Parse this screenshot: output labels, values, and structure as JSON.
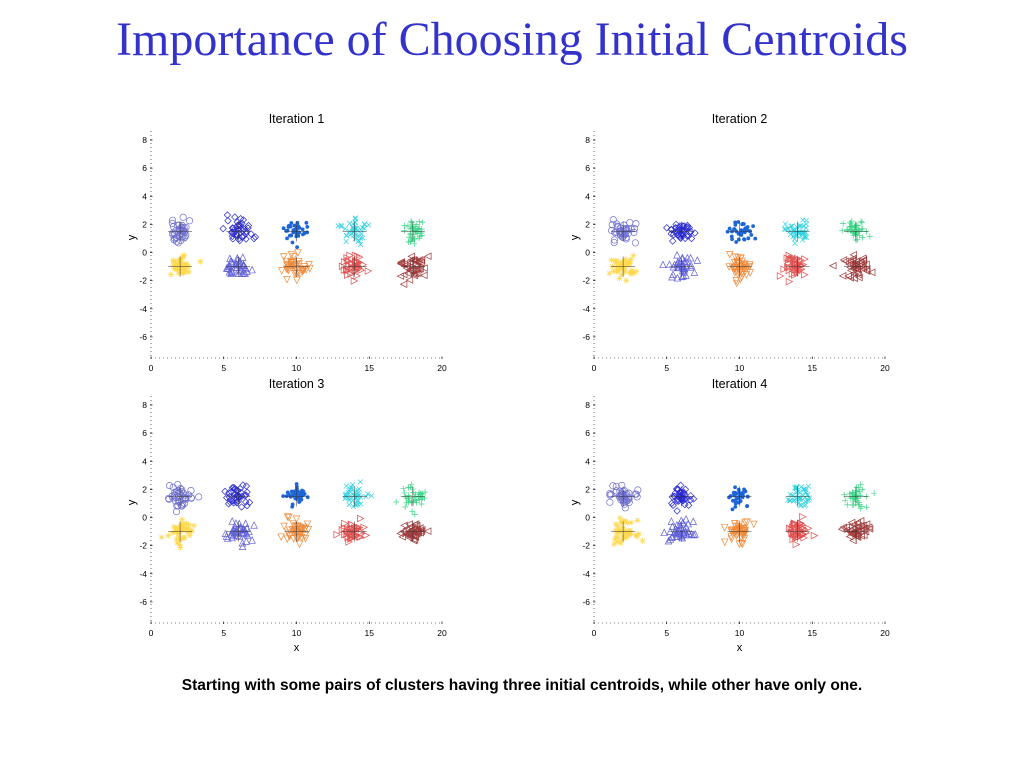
{
  "slide": {
    "title": "Importance of Choosing Initial Centroids",
    "caption": "Starting with some pairs of clusters having three initial centroids, while other have only one."
  },
  "chart_data": [
    {
      "type": "scatter",
      "title": "Iteration 1",
      "xlabel": "",
      "ylabel": "y",
      "xlim": [
        0,
        20
      ],
      "ylim": [
        -7.5,
        8.5
      ],
      "xticks": [
        0,
        5,
        10,
        15,
        20
      ],
      "yticks": [
        8,
        6,
        4,
        2,
        0,
        -2,
        -4,
        -6
      ],
      "clusters": [
        {
          "center": [
            2,
            1.5
          ],
          "color": "#6f6fd0",
          "marker": "circle"
        },
        {
          "center": [
            6,
            1.5
          ],
          "color": "#2a2ad0",
          "marker": "diamond"
        },
        {
          "center": [
            10,
            1.5
          ],
          "color": "#1e66d8",
          "marker": "dot"
        },
        {
          "center": [
            14,
            1.5
          ],
          "color": "#2ed1e0",
          "marker": "x"
        },
        {
          "center": [
            18,
            1.5
          ],
          "color": "#3fd68a",
          "marker": "plus"
        },
        {
          "center": [
            2,
            -1
          ],
          "color": "#ffd84a",
          "marker": "star"
        },
        {
          "center": [
            6,
            -1
          ],
          "color": "#6060d8",
          "marker": "triangle-up"
        },
        {
          "center": [
            10,
            -1
          ],
          "color": "#ee8a3a",
          "marker": "triangle-down"
        },
        {
          "center": [
            14,
            -1
          ],
          "color": "#e05050",
          "marker": "triangle-right"
        },
        {
          "center": [
            18,
            -1
          ],
          "color": "#a03a3a",
          "marker": "triangle-left"
        }
      ]
    },
    {
      "type": "scatter",
      "title": "Iteration 2",
      "xlabel": "",
      "ylabel": "y",
      "xlim": [
        0,
        20
      ],
      "ylim": [
        -7.5,
        8.5
      ],
      "xticks": [
        0,
        5,
        10,
        15,
        20
      ],
      "yticks": [
        8,
        6,
        4,
        2,
        0,
        -2,
        -4,
        -6
      ],
      "clusters": [
        {
          "center": [
            2,
            1.5
          ],
          "color": "#6f6fd0",
          "marker": "circle"
        },
        {
          "center": [
            6,
            1.5
          ],
          "color": "#2a2ad0",
          "marker": "diamond"
        },
        {
          "center": [
            10,
            1.5
          ],
          "color": "#1e66d8",
          "marker": "dot"
        },
        {
          "center": [
            14,
            1.5
          ],
          "color": "#2ed1e0",
          "marker": "x"
        },
        {
          "center": [
            18,
            1.5
          ],
          "color": "#3fd68a",
          "marker": "plus"
        },
        {
          "center": [
            2,
            -1
          ],
          "color": "#ffd84a",
          "marker": "star"
        },
        {
          "center": [
            6,
            -1
          ],
          "color": "#6060d8",
          "marker": "triangle-up"
        },
        {
          "center": [
            10,
            -1
          ],
          "color": "#ee8a3a",
          "marker": "triangle-down"
        },
        {
          "center": [
            14,
            -1
          ],
          "color": "#e05050",
          "marker": "triangle-right"
        },
        {
          "center": [
            18,
            -1
          ],
          "color": "#a03a3a",
          "marker": "triangle-left"
        }
      ]
    },
    {
      "type": "scatter",
      "title": "Iteration 3",
      "xlabel": "x",
      "ylabel": "y",
      "xlim": [
        0,
        20
      ],
      "ylim": [
        -7.5,
        8.5
      ],
      "xticks": [
        0,
        5,
        10,
        15,
        20
      ],
      "yticks": [
        8,
        6,
        4,
        2,
        0,
        -2,
        -4,
        -6
      ],
      "clusters": [
        {
          "center": [
            2,
            1.5
          ],
          "color": "#6f6fd0",
          "marker": "circle"
        },
        {
          "center": [
            6,
            1.5
          ],
          "color": "#2a2ad0",
          "marker": "diamond"
        },
        {
          "center": [
            10,
            1.5
          ],
          "color": "#1e66d8",
          "marker": "dot"
        },
        {
          "center": [
            14,
            1.5
          ],
          "color": "#2ed1e0",
          "marker": "x"
        },
        {
          "center": [
            18,
            1.5
          ],
          "color": "#3fd68a",
          "marker": "plus"
        },
        {
          "center": [
            2,
            -1
          ],
          "color": "#ffd84a",
          "marker": "star"
        },
        {
          "center": [
            6,
            -1
          ],
          "color": "#6060d8",
          "marker": "triangle-up"
        },
        {
          "center": [
            10,
            -1
          ],
          "color": "#ee8a3a",
          "marker": "triangle-down"
        },
        {
          "center": [
            14,
            -1
          ],
          "color": "#e05050",
          "marker": "triangle-right"
        },
        {
          "center": [
            18,
            -1
          ],
          "color": "#a03a3a",
          "marker": "triangle-left"
        }
      ]
    },
    {
      "type": "scatter",
      "title": "Iteration 4",
      "xlabel": "x",
      "ylabel": "y",
      "xlim": [
        0,
        20
      ],
      "ylim": [
        -7.5,
        8.5
      ],
      "xticks": [
        0,
        5,
        10,
        15,
        20
      ],
      "yticks": [
        8,
        6,
        4,
        2,
        0,
        -2,
        -4,
        -6
      ],
      "clusters": [
        {
          "center": [
            2,
            1.5
          ],
          "color": "#6f6fd0",
          "marker": "circle"
        },
        {
          "center": [
            6,
            1.5
          ],
          "color": "#2a2ad0",
          "marker": "diamond"
        },
        {
          "center": [
            10,
            1.5
          ],
          "color": "#1e66d8",
          "marker": "dot"
        },
        {
          "center": [
            14,
            1.5
          ],
          "color": "#2ed1e0",
          "marker": "x"
        },
        {
          "center": [
            18,
            1.5
          ],
          "color": "#3fd68a",
          "marker": "plus"
        },
        {
          "center": [
            2,
            -1
          ],
          "color": "#ffd84a",
          "marker": "star"
        },
        {
          "center": [
            6,
            -1
          ],
          "color": "#6060d8",
          "marker": "triangle-up"
        },
        {
          "center": [
            10,
            -1
          ],
          "color": "#ee8a3a",
          "marker": "triangle-down"
        },
        {
          "center": [
            14,
            -1
          ],
          "color": "#e05050",
          "marker": "triangle-right"
        },
        {
          "center": [
            18,
            -1
          ],
          "color": "#a03a3a",
          "marker": "triangle-left"
        }
      ]
    }
  ]
}
